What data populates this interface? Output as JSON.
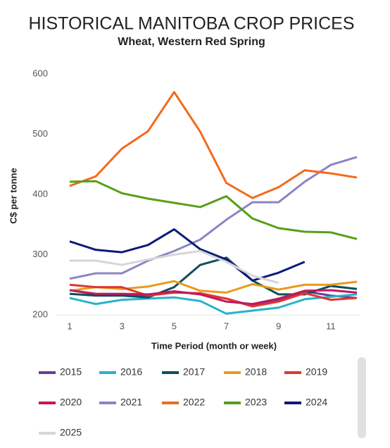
{
  "chart_data": {
    "type": "line",
    "title": "HISTORICAL MANITOBA CROP PRICES",
    "subtitle": "Wheat, Western Red Spring",
    "y_label": "C$ per tonne",
    "x_label": "Time Period (month or week)",
    "x": [
      1,
      2,
      3,
      4,
      5,
      6,
      7,
      8,
      9,
      10,
      11,
      12
    ],
    "xlim": [
      1,
      12
    ],
    "xticks": [
      1,
      3,
      5,
      7,
      9,
      11
    ],
    "ylim": [
      200,
      600
    ],
    "yticks": [
      200,
      300,
      400,
      500,
      600
    ],
    "grid": false,
    "legend": "bottom",
    "series": [
      {
        "name": "2015",
        "color": "#6a3d9a",
        "values": [
          241,
          234,
          234,
          232,
          239,
          234,
          227,
          215,
          225,
          239,
          232,
          228
        ]
      },
      {
        "name": "2016",
        "color": "#26b3cc",
        "values": [
          228,
          218,
          225,
          227,
          229,
          223,
          202,
          207,
          212,
          226,
          230,
          234
        ]
      },
      {
        "name": "2017",
        "color": "#0f4f5c",
        "values": [
          235,
          232,
          232,
          229,
          246,
          283,
          295,
          257,
          234,
          234,
          248,
          243
        ]
      },
      {
        "name": "2018",
        "color": "#e89a1c",
        "values": [
          240,
          246,
          243,
          247,
          256,
          240,
          237,
          251,
          242,
          250,
          250,
          255
        ]
      },
      {
        "name": "2019",
        "color": "#e0382e",
        "values": [
          250,
          246,
          246,
          232,
          237,
          236,
          227,
          214,
          222,
          236,
          225,
          228
        ]
      },
      {
        "name": "2020",
        "color": "#c2185b",
        "values": [
          241,
          235,
          235,
          234,
          239,
          234,
          222,
          218,
          227,
          240,
          241,
          237
        ]
      },
      {
        "name": "2021",
        "color": "#8c85c2",
        "values": [
          260,
          269,
          269,
          290,
          306,
          325,
          358,
          387,
          387,
          421,
          449,
          462
        ]
      },
      {
        "name": "2022",
        "color": "#f26a1b",
        "values": [
          414,
          430,
          476,
          505,
          570,
          504,
          419,
          394,
          412,
          440,
          435,
          428
        ]
      },
      {
        "name": "2023",
        "color": "#5a9e1a",
        "values": [
          421,
          422,
          402,
          393,
          386,
          379,
          397,
          360,
          344,
          338,
          337,
          326
        ]
      },
      {
        "name": "2024",
        "color": "#0a1a7a",
        "values": [
          322,
          308,
          304,
          316,
          342,
          309,
          292,
          257,
          270,
          288,
          null,
          null
        ]
      },
      {
        "name": "2025",
        "color": "#d6d6d6",
        "values": [
          290,
          290,
          283,
          292,
          300,
          306,
          288,
          265,
          253,
          null,
          null,
          null
        ]
      }
    ]
  }
}
